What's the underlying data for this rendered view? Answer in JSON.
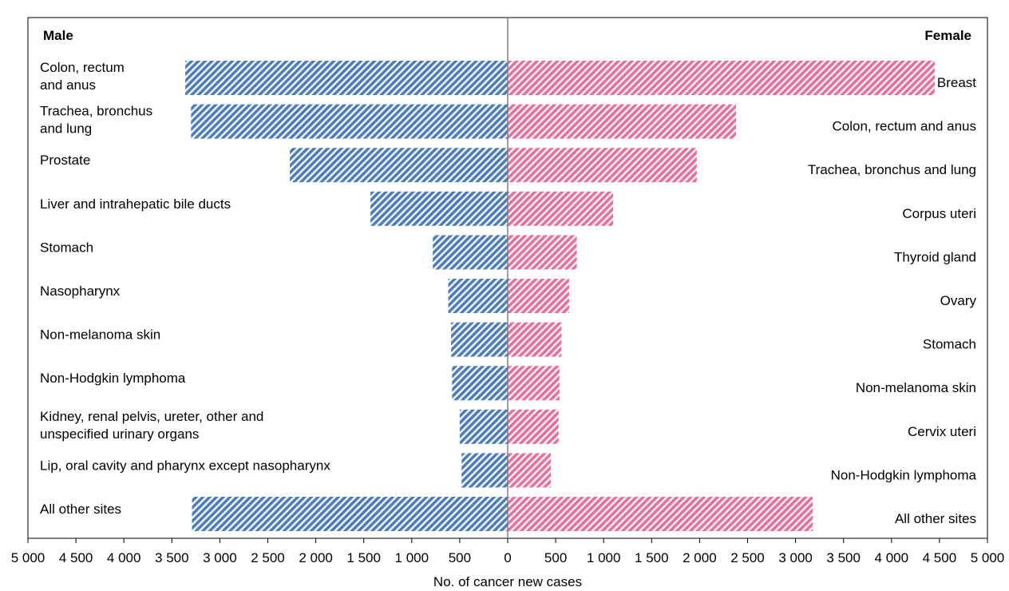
{
  "chart_data": {
    "type": "bar",
    "orientation": "horizontal",
    "layout": "population-pyramid",
    "xlabel": "No. of cancer new cases",
    "xlim": [
      -5000,
      5000
    ],
    "xticks": [
      -5000,
      -4500,
      -4000,
      -3500,
      -3000,
      -2500,
      -2000,
      -1500,
      -1000,
      -500,
      0,
      500,
      1000,
      1500,
      2000,
      2500,
      3000,
      3500,
      4000,
      4500,
      5000
    ],
    "xtick_labels": [
      "5 000",
      "4 500",
      "4 000",
      "3 500",
      "3 000",
      "2 500",
      "2 000",
      "1 500",
      "1 000",
      "500",
      "0",
      "500",
      "1 000",
      "1 500",
      "2 000",
      "2 500",
      "3 000",
      "3 500",
      "4 000",
      "4 500",
      "5 000"
    ],
    "grid": false,
    "panels": [
      {
        "name": "Male",
        "side": "left",
        "color": "#4a7cc0",
        "pattern": "diagonal-hatch",
        "categories": [
          [
            "Colon, rectum",
            "and anus"
          ],
          [
            "Trachea, bronchus",
            "and lung"
          ],
          [
            "Prostate"
          ],
          [
            "Liver and intrahepatic bile ducts"
          ],
          [
            "Stomach"
          ],
          [
            "Nasopharynx"
          ],
          [
            "Non-melanoma skin"
          ],
          [
            "Non-Hodgkin lymphoma"
          ],
          [
            "Kidney, renal pelvis, ureter, other and",
            "unspecified urinary organs"
          ],
          [
            "Lip, oral cavity and pharynx except nasopharynx"
          ],
          [
            "All other sites"
          ]
        ],
        "values": [
          3360,
          3300,
          2270,
          1430,
          780,
          620,
          590,
          580,
          500,
          480,
          3290
        ]
      },
      {
        "name": "Female",
        "side": "right",
        "color": "#f06a9a",
        "pattern": "diagonal-hatch",
        "categories": [
          [
            "Breast"
          ],
          [
            "Colon, rectum and anus"
          ],
          [
            "Trachea, bronchus and lung"
          ],
          [
            "Corpus uteri"
          ],
          [
            "Thyroid gland"
          ],
          [
            "Ovary"
          ],
          [
            "Stomach"
          ],
          [
            "Non-melanoma skin"
          ],
          [
            "Cervix uteri"
          ],
          [
            "Non-Hodgkin lymphoma"
          ],
          [
            "All other sites"
          ]
        ],
        "values": [
          4450,
          2380,
          1970,
          1100,
          720,
          640,
          560,
          540,
          530,
          450,
          3180
        ]
      }
    ]
  }
}
